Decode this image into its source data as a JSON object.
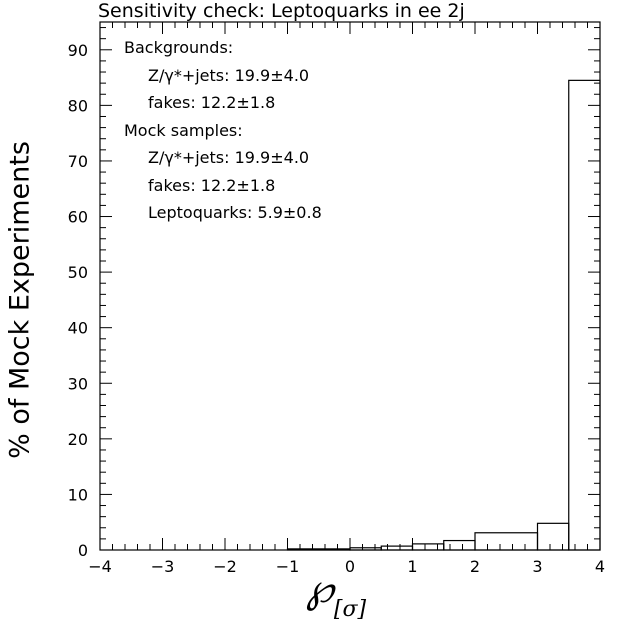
{
  "chart_data": {
    "type": "histogram",
    "title": "Sensitivity check: Leptoquarks in ee 2j",
    "xlabel_main": "℘",
    "xlabel_sub": "[σ]",
    "ylabel": "% of Mock Experiments",
    "xlim": [
      -4,
      4
    ],
    "ylim": [
      0,
      95
    ],
    "x_ticks": [
      -4,
      -3,
      -2,
      -1,
      0,
      1,
      2,
      3,
      4
    ],
    "x_tick_labels": [
      "−4",
      "−3",
      "−2",
      "−1",
      "0",
      "1",
      "2",
      "3",
      "4"
    ],
    "y_ticks": [
      0,
      10,
      20,
      30,
      40,
      50,
      60,
      70,
      80,
      90
    ],
    "y_tick_labels": [
      "0",
      "10",
      "20",
      "30",
      "40",
      "50",
      "60",
      "70",
      "80",
      "90"
    ],
    "bins": [
      {
        "x0": -4.0,
        "x1": -1.0,
        "value": 0.0
      },
      {
        "x0": -1.0,
        "x1": 0.0,
        "value": 0.2
      },
      {
        "x0": 0.0,
        "x1": 0.5,
        "value": 0.4
      },
      {
        "x0": 0.5,
        "x1": 1.0,
        "value": 0.7
      },
      {
        "x0": 1.0,
        "x1": 1.5,
        "value": 1.1
      },
      {
        "x0": 1.5,
        "x1": 2.0,
        "value": 1.7
      },
      {
        "x0": 2.0,
        "x1": 3.0,
        "value": 3.1
      },
      {
        "x0": 3.0,
        "x1": 3.5,
        "value": 4.8
      },
      {
        "x0": 3.5,
        "x1": 4.0,
        "value": 84.5
      }
    ],
    "annotations": [
      {
        "text": "Backgrounds:",
        "indent": false
      },
      {
        "text": "Z/γ*+jets: 19.9±4.0",
        "indent": true
      },
      {
        "text": "fakes: 12.2±1.8",
        "indent": true
      },
      {
        "text": "Mock samples:",
        "indent": false
      },
      {
        "text": "Z/γ*+jets: 19.9±4.0",
        "indent": true
      },
      {
        "text": "fakes: 12.2±1.8",
        "indent": true
      },
      {
        "text": "Leptoquarks: 5.9±0.8",
        "indent": true
      }
    ],
    "grid": false,
    "line_color": "#000000"
  }
}
